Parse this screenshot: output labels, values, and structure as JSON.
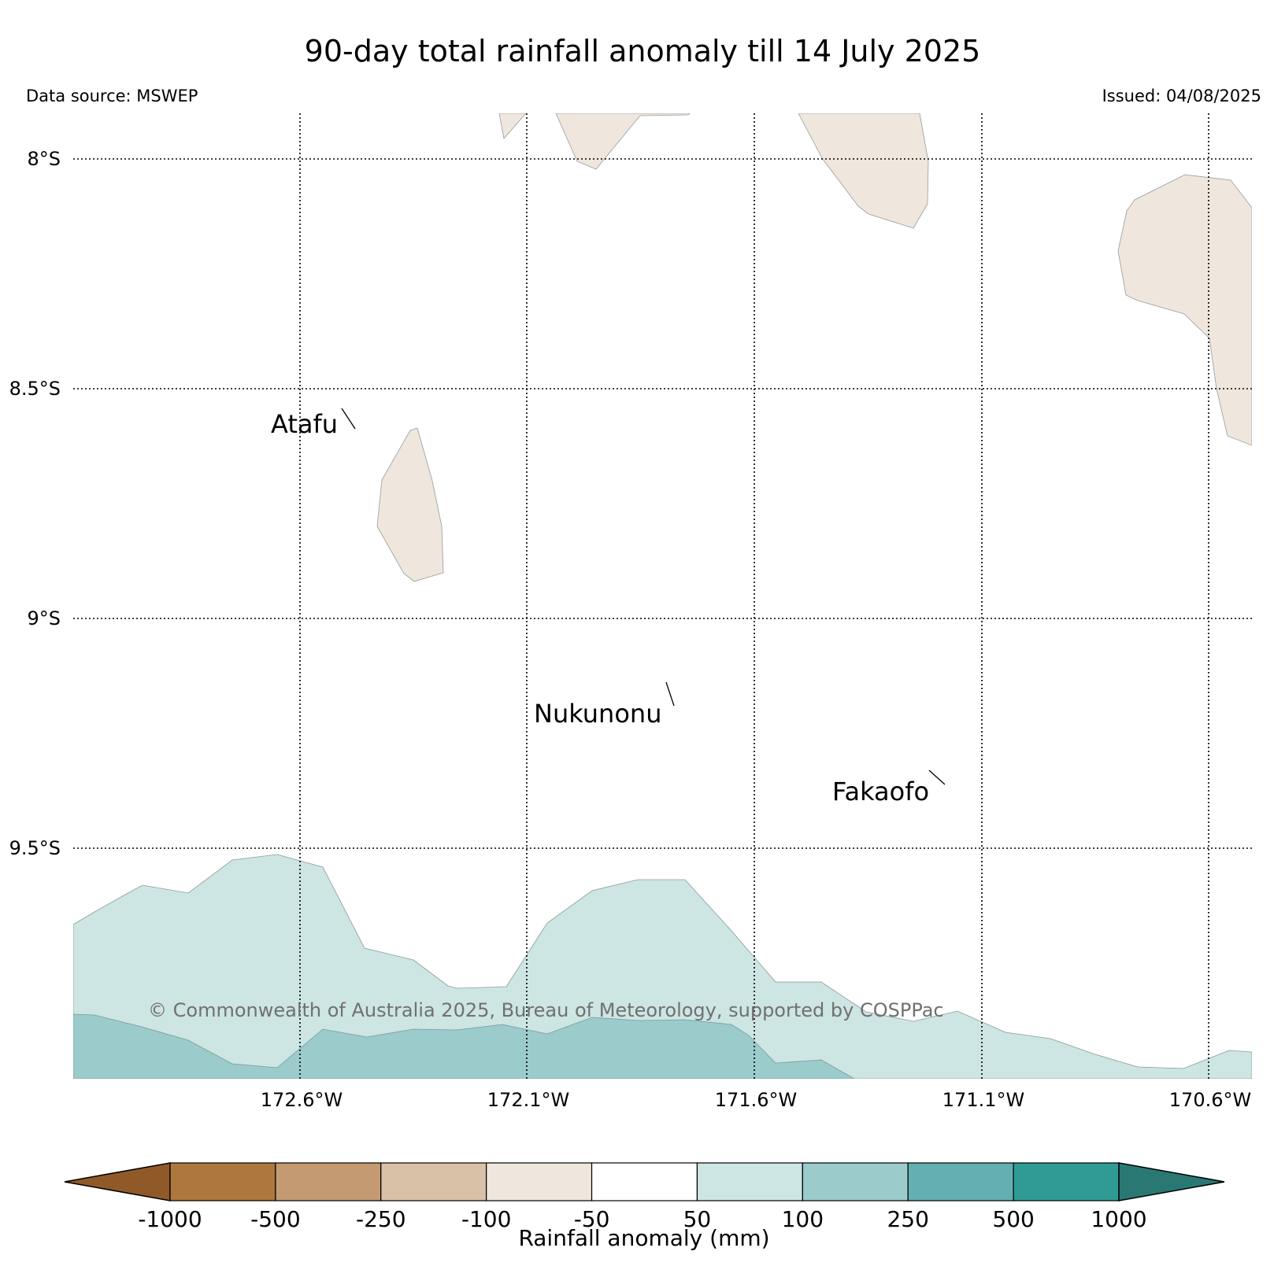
{
  "title": "90-day total rainfall anomaly till 14 July 2025",
  "data_source": "Data source: MSWEP",
  "issued": "Issued: 04/08/2025",
  "copyright": "© Commonwealth of Australia 2025, Bureau of Meteorology, supported by COSPPac",
  "map": {
    "lat_labels": [
      "8°S",
      "8.5°S",
      "9°S",
      "9.5°S"
    ],
    "lon_labels": [
      "172.6°W",
      "172.1°W",
      "171.6°W",
      "171.1°W",
      "170.6°W"
    ],
    "places": [
      {
        "name": "Atafu"
      },
      {
        "name": "Nukunonu"
      },
      {
        "name": "Fakaofo"
      }
    ],
    "colors": {
      "land": "#efe6dd",
      "anomaly_50_100": "#cde5e3",
      "anomaly_100_250": "#9bcbca"
    }
  },
  "colorbar": {
    "label": "Rainfall anomaly (mm)",
    "ticks": [
      "-1000",
      "-500",
      "-250",
      "-100",
      "-50",
      "50",
      "100",
      "250",
      "500",
      "1000"
    ],
    "colors": [
      "#8f5a28",
      "#ad773e",
      "#c39a71",
      "#d9c1a8",
      "#efe6dd",
      "#ffffff",
      "#cde5e3",
      "#9bcbca",
      "#64b0b0",
      "#309b95",
      "#297874"
    ]
  }
}
